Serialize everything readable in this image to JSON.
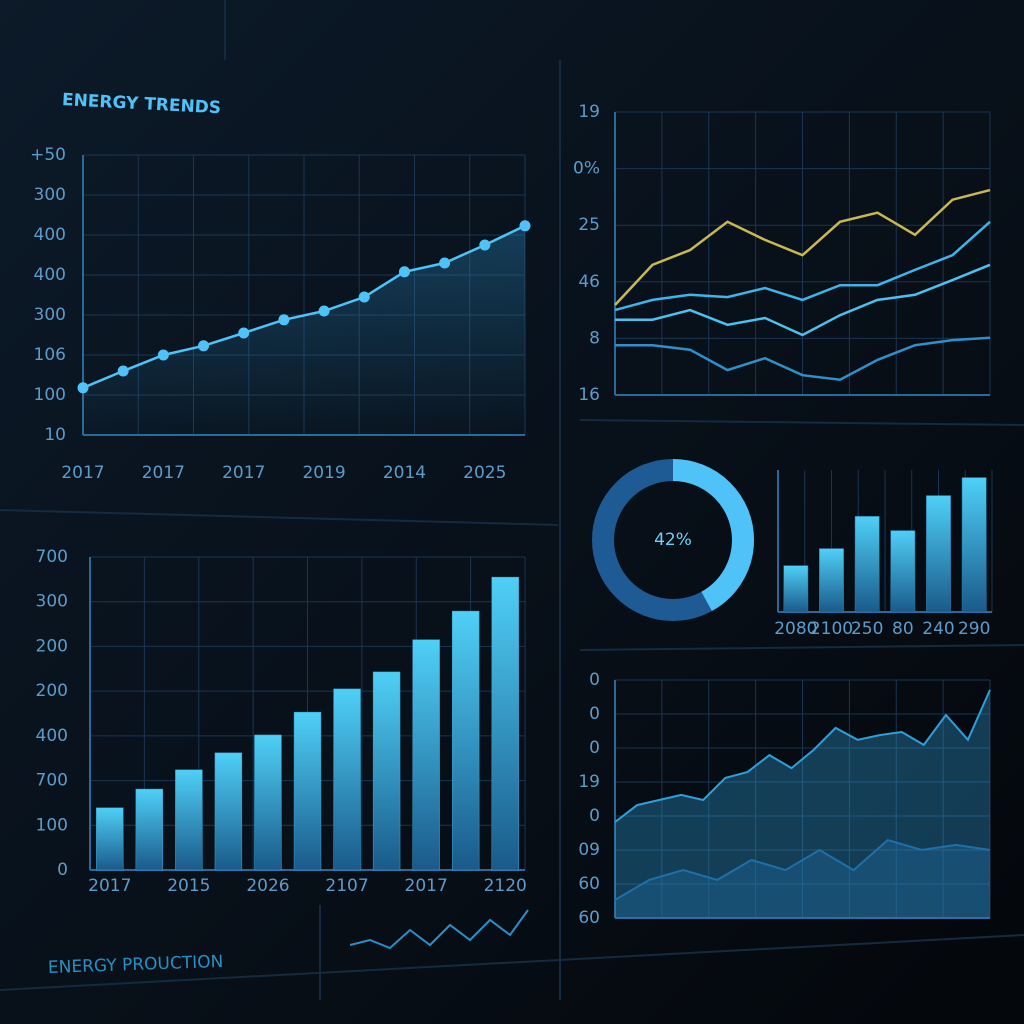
{
  "chart_data": [
    {
      "type": "line",
      "title": "ENERGY TRENDS",
      "categories": [
        "2017",
        null,
        "2017",
        null,
        "2017",
        null,
        "2019",
        null,
        "2014",
        null,
        "2025",
        null
      ],
      "values": [
        1.18,
        1.6,
        2.0,
        2.23,
        2.55,
        2.88,
        3.1,
        3.45,
        4.08,
        4.3,
        4.75,
        5.23
      ],
      "color": "#4fc3f7",
      "ylim": [
        0,
        7
      ],
      "yticks": [
        {
          "value": 0,
          "label": "10"
        },
        {
          "value": 1,
          "label": "100"
        },
        {
          "value": 2,
          "label": "106"
        },
        {
          "value": 3,
          "label": "300"
        },
        {
          "value": 4,
          "label": "400"
        },
        {
          "value": 5,
          "label": "400"
        },
        {
          "value": 6,
          "label": "300"
        },
        {
          "value": 7,
          "label": "+50"
        }
      ],
      "grid": true
    },
    {
      "type": "bar",
      "title": "ENERGY PROUCTION",
      "categories": [
        "2017",
        null,
        "2015",
        null,
        "2026",
        null,
        "2107",
        null,
        "2017",
        null,
        "2120"
      ],
      "values": [
        1.39,
        1.81,
        2.24,
        2.62,
        3.02,
        3.53,
        4.05,
        4.43,
        5.15,
        5.79,
        6.55
      ],
      "color": "#35a6d8",
      "ylim": [
        0,
        7
      ],
      "yticks": [
        {
          "value": 0,
          "label": "0"
        },
        {
          "value": 1,
          "label": "100"
        },
        {
          "value": 2,
          "label": "700"
        },
        {
          "value": 3,
          "label": "400"
        },
        {
          "value": 4,
          "label": "200"
        },
        {
          "value": 5,
          "label": "200"
        },
        {
          "value": 6,
          "label": "300"
        },
        {
          "value": 7,
          "label": "700"
        }
      ],
      "grid": true
    },
    {
      "type": "line",
      "series": [
        {
          "color": "#c8b850",
          "values": [
            1.59,
            2.3,
            2.56,
            3.06,
            2.74,
            2.47,
            3.06,
            3.22,
            2.83,
            3.45,
            3.62
          ]
        },
        {
          "color": "#3fb4ea",
          "values": [
            1.5,
            1.68,
            1.77,
            1.73,
            1.89,
            1.68,
            1.94,
            1.94,
            2.21,
            2.47,
            3.06
          ]
        },
        {
          "color": "#4cc0ee",
          "values": [
            1.33,
            1.33,
            1.5,
            1.24,
            1.36,
            1.06,
            1.41,
            1.68,
            1.77,
            2.03,
            2.3
          ]
        },
        {
          "color": "#2f8fc8",
          "values": [
            0.88,
            0.88,
            0.8,
            0.44,
            0.65,
            0.35,
            0.27,
            0.62,
            0.88,
            0.97,
            1.01
          ]
        }
      ],
      "ylim": [
        0,
        5
      ],
      "yticks": [
        {
          "value": 0,
          "label": "16"
        },
        {
          "value": 1,
          "label": "8"
        },
        {
          "value": 2,
          "label": "46"
        },
        {
          "value": 3,
          "label": "25"
        },
        {
          "value": 4,
          "label": "0%"
        },
        {
          "value": 5,
          "label": "19"
        }
      ],
      "grid": true
    },
    {
      "type": "donut",
      "values": [
        42
      ],
      "value_labels": [
        "42%"
      ],
      "color": "#4fc3f7"
    },
    {
      "type": "bar",
      "categories": [
        "2080",
        "2100",
        "250",
        "80",
        "240",
        "290"
      ],
      "values": [
        49,
        67,
        101,
        86,
        123,
        142
      ],
      "color": "#2a7fb8",
      "ylim": [
        0,
        150
      ],
      "grid": true
    },
    {
      "type": "area",
      "series": [
        {
          "color": "#2f9fd8",
          "values": [
            2.82,
            3.32,
            3.47,
            3.62,
            3.47,
            4.12,
            4.29,
            4.79,
            4.41,
            4.94,
            5.59,
            5.24,
            5.38,
            5.47,
            5.09,
            5.97,
            5.24,
            6.71
          ]
        },
        {
          "color": "#1f6fa8",
          "values": [
            0.53,
            1.12,
            1.41,
            1.12,
            1.71,
            1.41,
            2.0,
            1.41,
            2.29,
            2.0,
            2.15,
            2.0
          ]
        }
      ],
      "ylim": [
        0,
        7
      ],
      "yticks": [
        {
          "value": 0,
          "label": "60"
        },
        {
          "value": 1,
          "label": "60"
        },
        {
          "value": 2,
          "label": "09"
        },
        {
          "value": 3,
          "label": "0"
        },
        {
          "value": 4,
          "label": "19"
        },
        {
          "value": 5,
          "label": "0"
        },
        {
          "value": 6,
          "label": "0"
        },
        {
          "value": 7,
          "label": "0"
        }
      ],
      "grid": true
    }
  ]
}
